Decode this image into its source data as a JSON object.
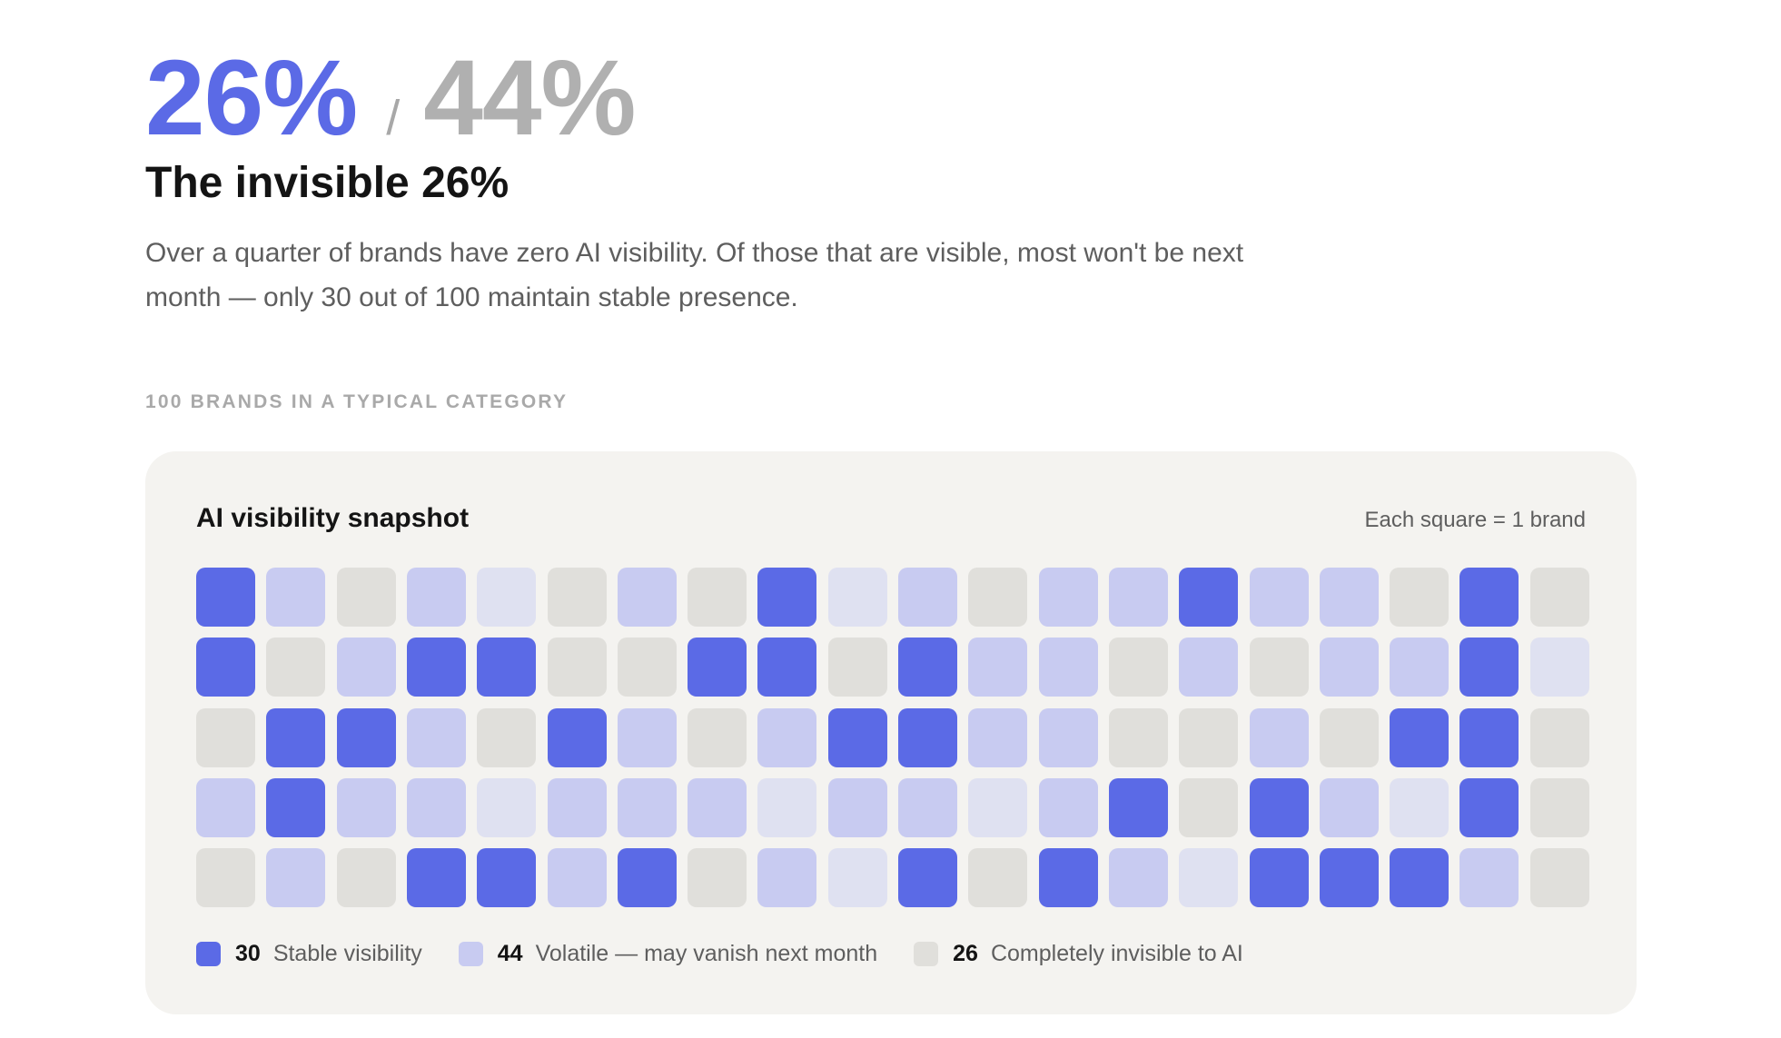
{
  "header": {
    "stat_primary": "26%",
    "stat_separator": "/",
    "stat_secondary": "44%",
    "headline": "The invisible 26%",
    "description": "Over a quarter of brands have zero AI visibility. Of those that are visible, most won't be next month — only 30 out of 100 maintain stable presence."
  },
  "section_label": "100 BRANDS IN A TYPICAL CATEGORY",
  "card": {
    "title": "AI visibility snapshot",
    "note": "Each square = 1 brand"
  },
  "colors": {
    "stable": "#5b6ae6",
    "volatile": "#c8cbf1",
    "volatile_light": "#dfe1f1",
    "invisible": "#e0dfdb"
  },
  "chart_data": {
    "type": "waffle",
    "columns": 20,
    "rows": 5,
    "cells": [
      "s",
      "v",
      "i",
      "v",
      "l",
      "i",
      "v",
      "i",
      "s",
      "l",
      "v",
      "i",
      "v",
      "v",
      "s",
      "v",
      "v",
      "i",
      "s",
      "i",
      "s",
      "i",
      "v",
      "s",
      "s",
      "i",
      "i",
      "s",
      "s",
      "i",
      "s",
      "v",
      "v",
      "i",
      "v",
      "i",
      "v",
      "v",
      "s",
      "l",
      "i",
      "s",
      "s",
      "v",
      "i",
      "s",
      "v",
      "i",
      "v",
      "s",
      "s",
      "v",
      "v",
      "i",
      "i",
      "v",
      "i",
      "s",
      "s",
      "i",
      "v",
      "s",
      "v",
      "v",
      "l",
      "v",
      "v",
      "v",
      "l",
      "v",
      "v",
      "l",
      "v",
      "s",
      "i",
      "s",
      "v",
      "l",
      "s",
      "i",
      "i",
      "v",
      "i",
      "s",
      "s",
      "v",
      "s",
      "i",
      "v",
      "l",
      "s",
      "i",
      "s",
      "v",
      "l",
      "s",
      "s",
      "s",
      "v",
      "i"
    ],
    "legend": [
      {
        "key": "stable",
        "count": "30",
        "label": "Stable visibility"
      },
      {
        "key": "volatile",
        "count": "44",
        "label": "Volatile — may vanish next month"
      },
      {
        "key": "invisible",
        "count": "26",
        "label": "Completely invisible to AI"
      }
    ]
  }
}
